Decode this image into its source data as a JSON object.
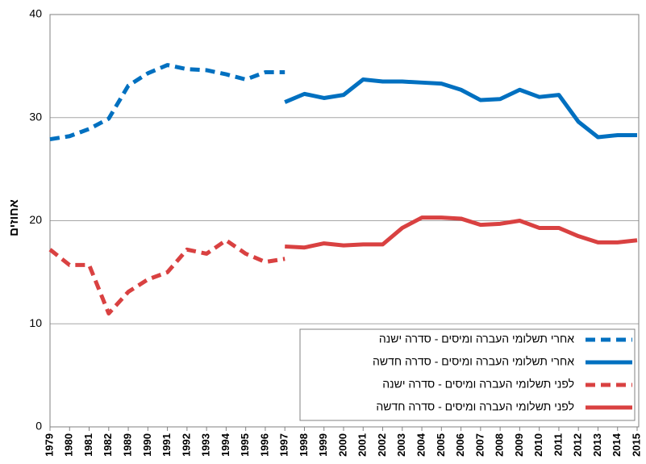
{
  "chart_data": {
    "type": "line",
    "y_label": "אחוזים",
    "categories": [
      "1979",
      "1980",
      "1981",
      "1982",
      "1989",
      "1990",
      "1991",
      "1992",
      "1993",
      "1994",
      "1995",
      "1996",
      "1997",
      "1998",
      "1999",
      "2000",
      "2001",
      "2002",
      "2003",
      "2004",
      "2005",
      "2006",
      "2007",
      "2008",
      "2009",
      "2010",
      "2011",
      "2012",
      "2013",
      "2014",
      "2015"
    ],
    "series": [
      {
        "name": "אחרי תשלומי העברה ומיסים - סדרה ישנה",
        "color": "#0070c0",
        "dashed": true,
        "values": [
          27.9,
          28.2,
          28.9,
          29.9,
          33.1,
          34.3,
          35.1,
          34.7,
          34.6,
          34.2,
          33.7,
          34.4,
          34.4,
          null,
          null,
          null,
          null,
          null,
          null,
          null,
          null,
          null,
          null,
          null,
          null,
          null,
          null,
          null,
          null,
          null,
          null
        ]
      },
      {
        "name": "אחרי תשלומי העברה ומיסים - סדרה חדשה",
        "color": "#0070c0",
        "dashed": false,
        "values": [
          null,
          null,
          null,
          null,
          null,
          null,
          null,
          null,
          null,
          null,
          null,
          null,
          31.5,
          32.3,
          31.9,
          32.2,
          33.7,
          33.5,
          33.5,
          33.4,
          33.3,
          32.7,
          31.7,
          31.8,
          32.7,
          32.0,
          32.2,
          29.6,
          28.1,
          28.3,
          28.3
        ]
      },
      {
        "name": "לפני תשלומי העברה ומיסים - סדרה ישנה",
        "color": "#d94141",
        "dashed": true,
        "values": [
          17.2,
          15.7,
          15.7,
          11.0,
          13.1,
          14.3,
          15.0,
          17.2,
          16.8,
          18.1,
          16.8,
          16.0,
          16.3,
          null,
          null,
          null,
          null,
          null,
          null,
          null,
          null,
          null,
          null,
          null,
          null,
          null,
          null,
          null,
          null,
          null,
          null
        ]
      },
      {
        "name": "לפני תשלומי העברה ומיסים - סדרה חדשה",
        "color": "#d94141",
        "dashed": false,
        "values": [
          null,
          null,
          null,
          null,
          null,
          null,
          null,
          null,
          null,
          null,
          null,
          null,
          17.5,
          17.4,
          17.8,
          17.6,
          17.7,
          17.7,
          19.3,
          20.3,
          20.3,
          20.2,
          19.6,
          19.7,
          20.0,
          19.3,
          19.3,
          18.5,
          17.9,
          17.9,
          18.1
        ]
      }
    ],
    "ylim": [
      0,
      40
    ],
    "yticks": [
      0,
      10,
      20,
      30,
      40
    ],
    "grid": true,
    "legend": "lower right"
  }
}
